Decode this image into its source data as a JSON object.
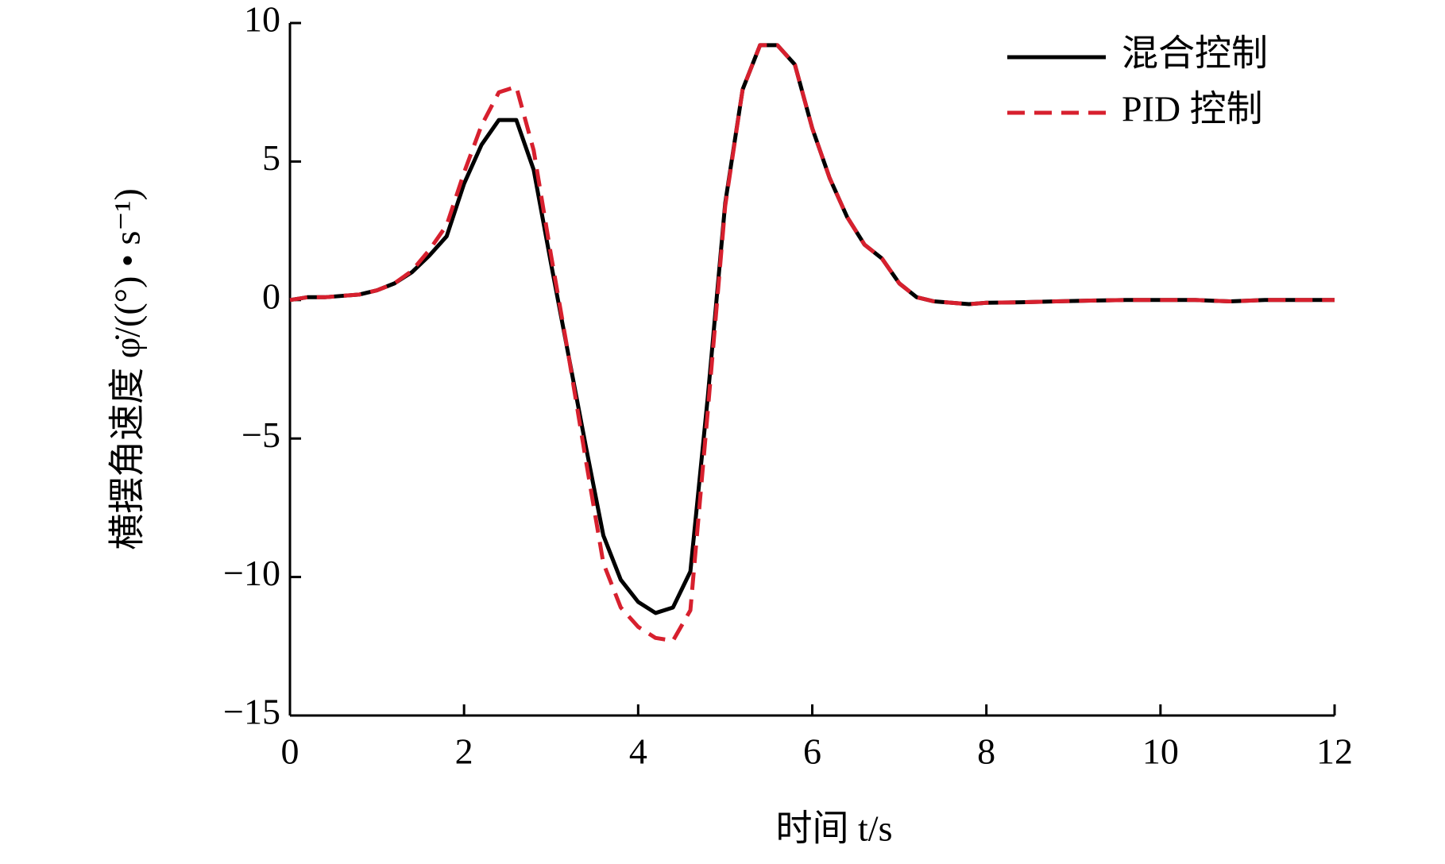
{
  "chart_data": {
    "type": "line",
    "x_label": "时间 t/s",
    "y_label": "横摆角速度 φ̇/((°) • s⁻¹)",
    "x": [
      0,
      0.2,
      0.4,
      0.6,
      0.8,
      1.0,
      1.2,
      1.4,
      1.6,
      1.8,
      2.0,
      2.2,
      2.4,
      2.6,
      2.8,
      3.0,
      3.2,
      3.4,
      3.6,
      3.8,
      4.0,
      4.2,
      4.4,
      4.6,
      4.8,
      5.0,
      5.2,
      5.4,
      5.6,
      5.8,
      6.0,
      6.2,
      6.4,
      6.6,
      6.8,
      7.0,
      7.2,
      7.4,
      7.6,
      7.8,
      8.0,
      8.4,
      8.8,
      9.2,
      9.6,
      10.0,
      10.4,
      10.8,
      11.2,
      11.6,
      12.0
    ],
    "series": [
      {
        "name": "混合控制",
        "color": "#000000",
        "dash": false,
        "values": [
          0,
          0.1,
          0.1,
          0.15,
          0.2,
          0.35,
          0.6,
          1.0,
          1.6,
          2.3,
          4.2,
          5.6,
          6.5,
          6.5,
          4.7,
          1.3,
          -2.0,
          -5.3,
          -8.5,
          -10.1,
          -10.9,
          -11.3,
          -11.1,
          -9.8,
          -3.5,
          3.5,
          7.6,
          9.2,
          9.2,
          8.5,
          6.2,
          4.4,
          3.0,
          2.0,
          1.5,
          0.6,
          0.1,
          -0.05,
          -0.1,
          -0.15,
          -0.1,
          -0.08,
          -0.05,
          -0.02,
          0,
          0,
          0,
          -0.05,
          0,
          0,
          0
        ]
      },
      {
        "name": "PID 控制",
        "color": "#d7202e",
        "dash": true,
        "values": [
          0,
          0.1,
          0.1,
          0.15,
          0.2,
          0.35,
          0.6,
          1.05,
          1.8,
          2.7,
          4.6,
          6.3,
          7.5,
          7.7,
          5.4,
          1.6,
          -2.0,
          -5.8,
          -9.5,
          -11.1,
          -11.8,
          -12.2,
          -12.3,
          -11.2,
          -4.0,
          3.4,
          7.6,
          9.2,
          9.2,
          8.5,
          6.2,
          4.4,
          3.0,
          2.0,
          1.5,
          0.6,
          0.1,
          -0.05,
          -0.1,
          -0.15,
          -0.1,
          -0.08,
          -0.05,
          -0.02,
          0,
          0,
          0,
          -0.05,
          0,
          0,
          0
        ]
      }
    ],
    "xlim": [
      0,
      12
    ],
    "xticks": [
      0,
      2,
      4,
      6,
      8,
      10,
      12
    ],
    "ylim": [
      -15,
      10
    ],
    "yticks": [
      10,
      5,
      0,
      {
        "value": -5,
        "label": "−5"
      },
      {
        "value": -10,
        "label": "−10"
      },
      {
        "value": -15,
        "label": "−15"
      }
    ],
    "legend": "upper right",
    "grid": false
  }
}
